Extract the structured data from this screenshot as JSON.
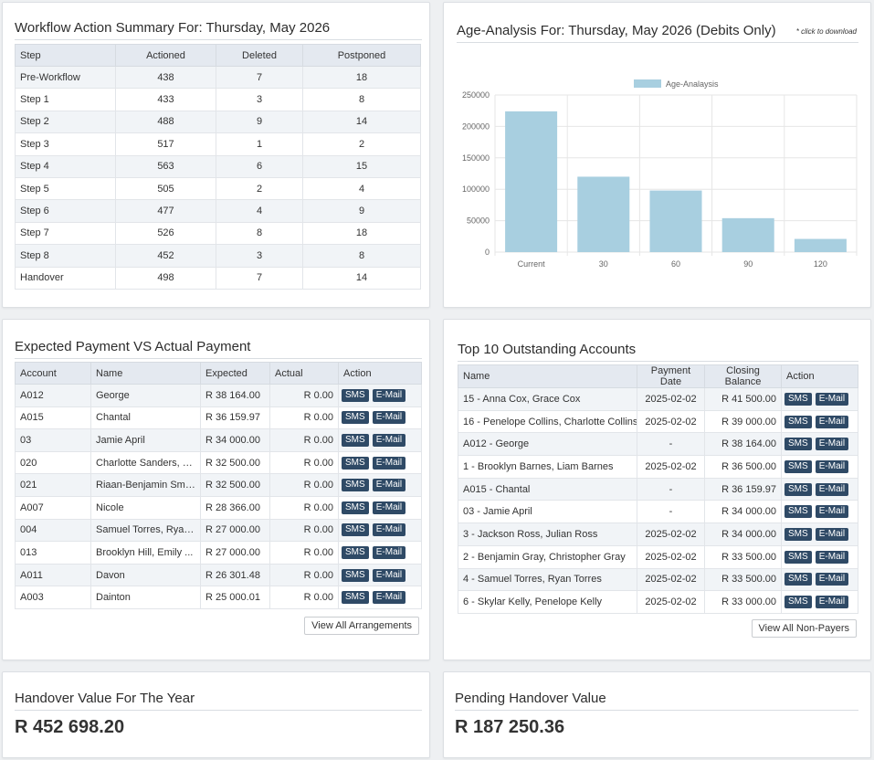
{
  "workflow": {
    "title": "Workflow Action Summary For: Thursday, May 2026",
    "columns": [
      "Step",
      "Actioned",
      "Deleted",
      "Postponed"
    ],
    "rows": [
      [
        "Pre-Workflow",
        "438",
        "7",
        "18"
      ],
      [
        "Step 1",
        "433",
        "3",
        "8"
      ],
      [
        "Step 2",
        "488",
        "9",
        "14"
      ],
      [
        "Step 3",
        "517",
        "1",
        "2"
      ],
      [
        "Step 4",
        "563",
        "6",
        "15"
      ],
      [
        "Step 5",
        "505",
        "2",
        "4"
      ],
      [
        "Step 6",
        "477",
        "4",
        "9"
      ],
      [
        "Step 7",
        "526",
        "8",
        "18"
      ],
      [
        "Step 8",
        "452",
        "3",
        "8"
      ],
      [
        "Handover",
        "498",
        "7",
        "14"
      ]
    ]
  },
  "age_analysis": {
    "title": "Age-Analysis For: Thursday, May 2026 (Debits Only)",
    "download_hint": "* click to download",
    "bar_color": "#a8cfe0"
  },
  "chart_data": {
    "type": "bar",
    "categories": [
      "Current",
      "30",
      "60",
      "90",
      "120"
    ],
    "series": [
      {
        "name": "Age-Analaysis",
        "values": [
          224000,
          120000,
          98000,
          54000,
          21000
        ]
      }
    ],
    "yticks": [
      "0",
      "50000",
      "100000",
      "150000",
      "200000",
      "250000"
    ],
    "ylim": [
      0,
      250000
    ],
    "grid": true,
    "legend": "top-center"
  },
  "expected": {
    "title": "Expected Payment VS Actual Payment",
    "columns": [
      "Account",
      "Name",
      "Expected",
      "Actual",
      "Action"
    ],
    "rows": [
      [
        "A012",
        "George",
        "R 38 164.00",
        "R 0.00"
      ],
      [
        "A015",
        "Chantal",
        "R 36 159.97",
        "R 0.00"
      ],
      [
        "03",
        "Jamie April",
        "R 34 000.00",
        "R 0.00"
      ],
      [
        "020",
        "Charlotte Sanders, L...",
        "R 32 500.00",
        "R 0.00"
      ],
      [
        "021",
        "Riaan-Benjamin Smi...",
        "R 32 500.00",
        "R 0.00"
      ],
      [
        "A007",
        "Nicole",
        "R 28 366.00",
        "R 0.00"
      ],
      [
        "004",
        "Samuel Torres, Ryan...",
        "R 27 000.00",
        "R 0.00"
      ],
      [
        "013",
        "Brooklyn Hill, Emily ...",
        "R 27 000.00",
        "R 0.00"
      ],
      [
        "A011",
        "Davon",
        "R 26 301.48",
        "R 0.00"
      ],
      [
        "A003",
        "Dainton",
        "R 25 000.01",
        "R 0.00"
      ]
    ],
    "sms_label": "SMS",
    "email_label": "E-Mail",
    "view_all": "View All Arrangements"
  },
  "top10": {
    "title": "Top 10 Outstanding Accounts",
    "columns": [
      "Name",
      "Payment Date",
      "Closing Balance",
      "Action"
    ],
    "rows": [
      [
        "15 - Anna Cox, Grace Cox",
        "2025-02-02",
        "R 41 500.00"
      ],
      [
        "16 - Penelope Collins, Charlotte Collins",
        "2025-02-02",
        "R 39 000.00"
      ],
      [
        "A012 - George",
        "-",
        "R 38 164.00"
      ],
      [
        "1 - Brooklyn Barnes, Liam Barnes",
        "2025-02-02",
        "R 36 500.00"
      ],
      [
        "A015 - Chantal",
        "-",
        "R 36 159.97"
      ],
      [
        "03 - Jamie April",
        "-",
        "R 34 000.00"
      ],
      [
        "3 - Jackson Ross, Julian Ross",
        "2025-02-02",
        "R 34 000.00"
      ],
      [
        "2 - Benjamin Gray, Christopher Gray",
        "2025-02-02",
        "R 33 500.00"
      ],
      [
        "4 - Samuel Torres, Ryan Torres",
        "2025-02-02",
        "R 33 500.00"
      ],
      [
        "6 - Skylar Kelly, Penelope Kelly",
        "2025-02-02",
        "R 33 000.00"
      ]
    ],
    "sms_label": "SMS",
    "email_label": "E-Mail",
    "view_all": "View All Non-Payers"
  },
  "handover_year": {
    "title": "Handover Value For The Year",
    "value": "R 452 698.20"
  },
  "pending_handover": {
    "title": "Pending Handover Value",
    "value": "R 187 250.36"
  }
}
